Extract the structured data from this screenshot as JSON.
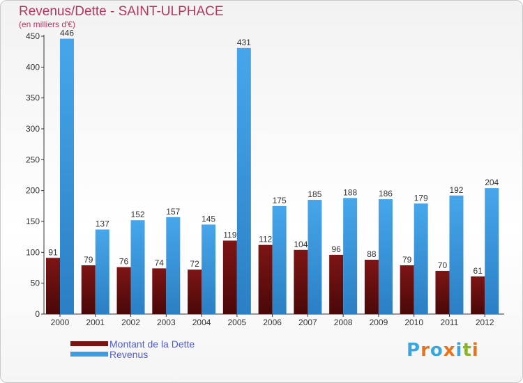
{
  "header": {
    "title": "Revenus/Dette - SAINT-ULPHACE",
    "subtitle": "(en milliers d'€)"
  },
  "legend": {
    "debt_label": "Montant de la Dette",
    "revenue_label": "Revenus"
  },
  "brand": {
    "name": "Proxiti",
    "letters": [
      "P",
      "r",
      "o",
      "x",
      "i",
      "t",
      "i"
    ],
    "letter_colors": [
      "#3aa6dd",
      "#e9731b",
      "#3aa6dd",
      "#e9731b",
      "#3aa6dd",
      "#8ab52a",
      "#e9731b"
    ]
  },
  "colors": {
    "debt": "#7a1414",
    "revenue": "#3d9ce0",
    "title": "#b7345f",
    "legend_text": "#4f5bd5"
  },
  "chart_data": {
    "type": "bar",
    "title": "Revenus/Dette - SAINT-ULPHACE",
    "subtitle": "(en milliers d'€)",
    "categories": [
      "2000",
      "2001",
      "2002",
      "2003",
      "2004",
      "2005",
      "2006",
      "2007",
      "2008",
      "2009",
      "2010",
      "2011",
      "2012"
    ],
    "series": [
      {
        "name": "Montant de la Dette",
        "values": [
          91,
          79,
          76,
          74,
          72,
          119,
          112,
          104,
          96,
          88,
          79,
          70,
          61
        ]
      },
      {
        "name": "Revenus",
        "values": [
          446,
          137,
          152,
          157,
          145,
          431,
          175,
          185,
          188,
          186,
          179,
          192,
          204
        ]
      }
    ],
    "yticks": [
      0,
      50,
      100,
      150,
      200,
      250,
      300,
      350,
      400,
      450
    ],
    "ylim": [
      0,
      450
    ],
    "grid": false,
    "legend_position": "bottom-left"
  }
}
